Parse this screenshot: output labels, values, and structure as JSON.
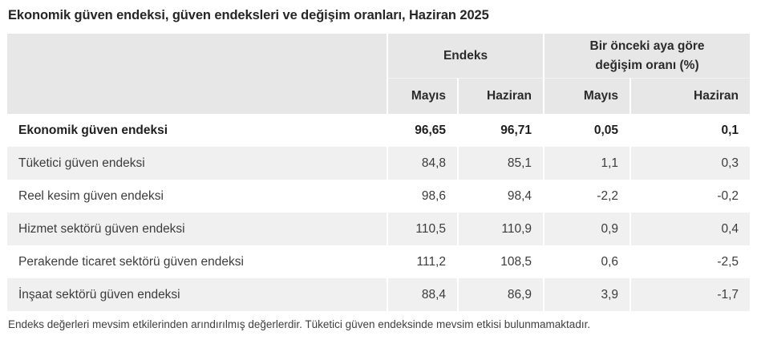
{
  "page": {
    "title": "Ekonomik güven endeksi, güven endeksleri ve değişim oranları, Haziran 2025",
    "footnote": "Endeks değerleri mevsim etkilerinden arındırılmış değerlerdir. Tüketici güven endeksinde mevsim etkisi bulunmamaktadır."
  },
  "table": {
    "col_groups": [
      {
        "name": "endeks",
        "lines": [
          "Endeks"
        ]
      },
      {
        "name": "monthly-change",
        "lines": [
          "Bir önceki aya göre",
          "değişim oranı (%)"
        ]
      }
    ],
    "sub_headers": [
      "Mayıs",
      "Haziran",
      "Mayıs",
      "Haziran"
    ],
    "rows": [
      {
        "label": "Ekonomik güven endeksi",
        "values": [
          "96,65",
          "96,71",
          "0,05",
          "0,1"
        ]
      },
      {
        "label": "Tüketici güven endeksi",
        "values": [
          "84,8",
          "85,1",
          "1,1",
          "0,3"
        ]
      },
      {
        "label": "Reel kesim güven endeksi",
        "values": [
          "98,6",
          "98,4",
          "-2,2",
          "-0,2"
        ]
      },
      {
        "label": "Hizmet sektörü güven endeksi",
        "values": [
          "110,5",
          "110,9",
          "0,9",
          "0,4"
        ]
      },
      {
        "label": "Perakende ticaret sektörü güven endeksi",
        "values": [
          "111,2",
          "108,5",
          "0,6",
          "-2,5"
        ]
      },
      {
        "label": "İnşaat sektörü güven endeksi",
        "values": [
          "88,4",
          "86,9",
          "3,9",
          "-1,7"
        ]
      }
    ]
  },
  "colors": {
    "header_bg": "#e7e7e7",
    "alt_row_bg": "#f0f0f0",
    "title_text": "#262626",
    "body_text": "#3c3c3c",
    "scrollbar_thumb": "#3d6dd2"
  }
}
